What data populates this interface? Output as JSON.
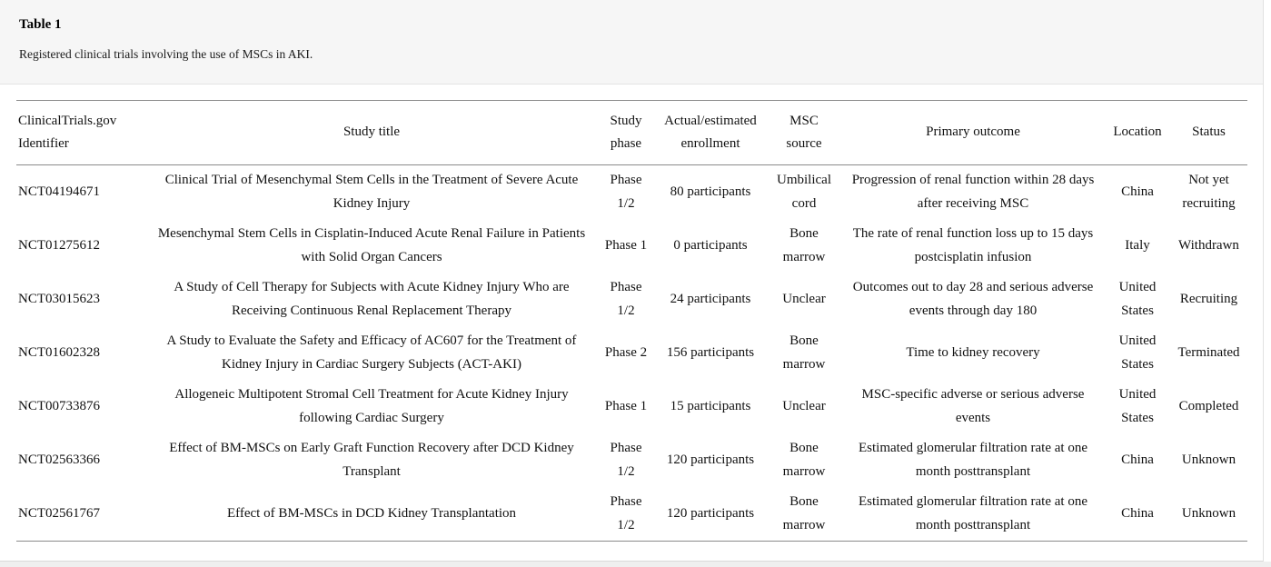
{
  "panel": {
    "title": "Table 1",
    "caption": "Registered clinical trials involving the use of MSCs in AKI."
  },
  "colors": {
    "header_background": "#f6f6f6",
    "table_rule": "#8a8a8a",
    "page_strip": "#efefef"
  },
  "table": {
    "columns": [
      "ClinicalTrials.gov Identifier",
      "Study title",
      "Study phase",
      "Actual/estimated enrollment",
      "MSC source",
      "Primary outcome",
      "Location",
      "Status"
    ],
    "rows": [
      {
        "identifier": "NCT04194671",
        "title": "Clinical Trial of Mesenchymal Stem Cells in the Treatment of Severe Acute Kidney Injury",
        "phase": "Phase 1/2",
        "enrollment": "80 participants",
        "source": "Umbilical cord",
        "outcome": "Progression of renal function within 28 days after receiving MSC",
        "location": "China",
        "status": "Not yet recruiting"
      },
      {
        "identifier": "NCT01275612",
        "title": "Mesenchymal Stem Cells in Cisplatin-Induced Acute Renal Failure in Patients with Solid Organ Cancers",
        "phase": "Phase 1",
        "enrollment": "0 participants",
        "source": "Bone marrow",
        "outcome": "The rate of renal function loss up to 15 days postcisplatin infusion",
        "location": "Italy",
        "status": "Withdrawn"
      },
      {
        "identifier": "NCT03015623",
        "title": "A Study of Cell Therapy for Subjects with Acute Kidney Injury Who are Receiving Continuous Renal Replacement Therapy",
        "phase": "Phase 1/2",
        "enrollment": "24 participants",
        "source": "Unclear",
        "outcome": "Outcomes out to day 28 and serious adverse events through day 180",
        "location": "United States",
        "status": "Recruiting"
      },
      {
        "identifier": "NCT01602328",
        "title": "A Study to Evaluate the Safety and Efficacy of AC607 for the Treatment of Kidney Injury in Cardiac Surgery Subjects (ACT-AKI)",
        "phase": "Phase 2",
        "enrollment": "156 participants",
        "source": "Bone marrow",
        "outcome": "Time to kidney recovery",
        "location": "United States",
        "status": "Terminated"
      },
      {
        "identifier": "NCT00733876",
        "title": "Allogeneic Multipotent Stromal Cell Treatment for Acute Kidney Injury following Cardiac Surgery",
        "phase": "Phase 1",
        "enrollment": "15 participants",
        "source": "Unclear",
        "outcome": "MSC-specific adverse or serious adverse events",
        "location": "United States",
        "status": "Completed"
      },
      {
        "identifier": "NCT02563366",
        "title": "Effect of BM-MSCs on Early Graft Function Recovery after DCD Kidney Transplant",
        "phase": "Phase 1/2",
        "enrollment": "120 participants",
        "source": "Bone marrow",
        "outcome": "Estimated glomerular filtration rate at one month posttransplant",
        "location": "China",
        "status": "Unknown"
      },
      {
        "identifier": "NCT02561767",
        "title": "Effect of BM-MSCs in DCD Kidney Transplantation",
        "phase": "Phase 1/2",
        "enrollment": "120 participants",
        "source": "Bone marrow",
        "outcome": "Estimated glomerular filtration rate at one month posttransplant",
        "location": "China",
        "status": "Unknown"
      }
    ]
  }
}
